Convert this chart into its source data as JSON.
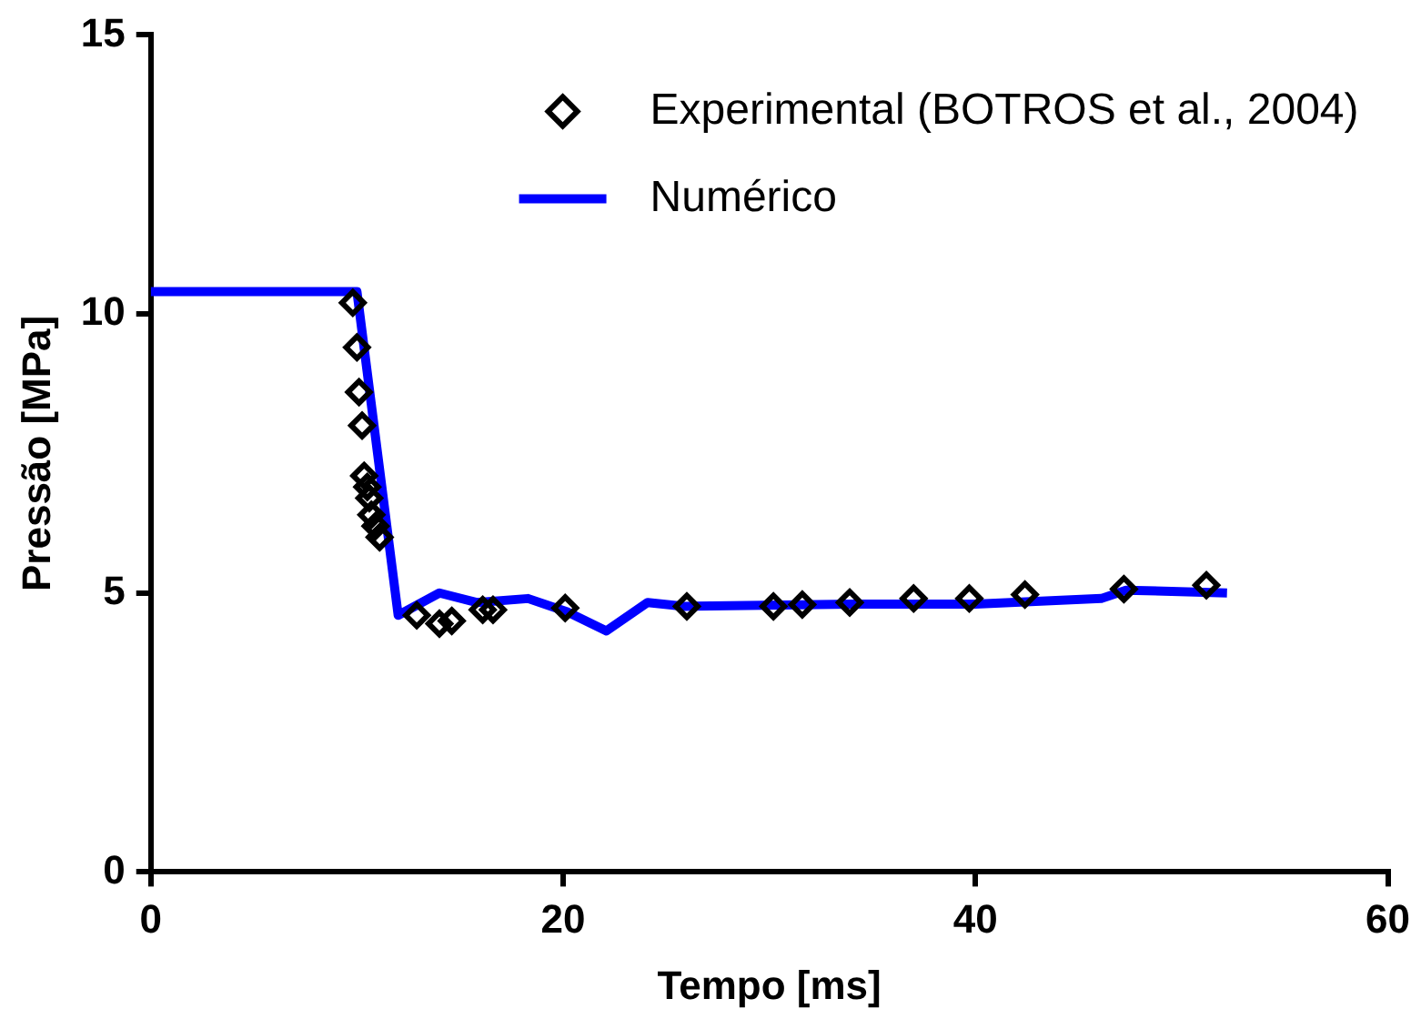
{
  "chart_data": {
    "type": "scatter",
    "xlabel": "Tempo [ms]",
    "ylabel": "Pressão [MPa]",
    "xlim": [
      0,
      60
    ],
    "xticks": [
      0,
      20,
      40,
      60
    ],
    "ylim": [
      0,
      15
    ],
    "yticks": [
      0,
      5,
      10,
      15
    ],
    "grid": false,
    "legend": "top right",
    "series": [
      {
        "name": "Experimental (BOTROS et al., 2004)",
        "type": "scatter",
        "marker": "diamond",
        "color": "#000000",
        "x": [
          9.8,
          10.0,
          10.1,
          10.25,
          10.35,
          10.5,
          10.6,
          10.7,
          10.9,
          11.1,
          12.9,
          14.0,
          14.6,
          16.1,
          16.6,
          20.1,
          26.0,
          30.2,
          31.6,
          33.9,
          37.0,
          39.7,
          42.4,
          47.2,
          51.2
        ],
        "values": [
          10.2,
          9.4,
          8.6,
          8.0,
          7.1,
          6.9,
          6.7,
          6.4,
          6.2,
          6.0,
          4.6,
          4.45,
          4.5,
          4.7,
          4.7,
          4.73,
          4.76,
          4.76,
          4.79,
          4.83,
          4.9,
          4.9,
          4.97,
          5.07,
          5.14
        ]
      },
      {
        "name": "Numérico",
        "type": "line",
        "marker": "none",
        "line_style": "solid",
        "color": "#0000ff",
        "x": [
          0,
          10,
          12,
          14,
          15.8,
          18.3,
          20.2,
          22.1,
          24.1,
          25.9,
          34,
          40,
          46.1,
          47.3,
          52.2
        ],
        "values": [
          10.4,
          10.4,
          4.6,
          5.0,
          4.83,
          4.9,
          4.66,
          4.32,
          4.83,
          4.76,
          4.8,
          4.8,
          4.9,
          5.05,
          5.0
        ]
      }
    ]
  }
}
